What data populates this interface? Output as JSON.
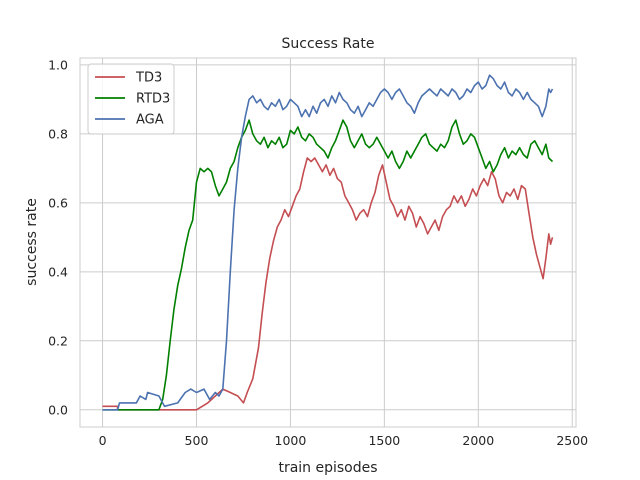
{
  "chart_data": {
    "type": "line",
    "title": "Success Rate",
    "xlabel": "train episodes",
    "ylabel": "success rate",
    "xlim": [
      -120,
      2520
    ],
    "ylim": [
      -0.05,
      1.02
    ],
    "xticks": [
      0,
      500,
      1000,
      1500,
      2000,
      2500
    ],
    "xtick_labels": [
      "0",
      "500",
      "1000",
      "1500",
      "2000",
      "2500"
    ],
    "yticks": [
      0.0,
      0.2,
      0.4,
      0.6,
      0.8,
      1.0
    ],
    "ytick_labels": [
      "0.0",
      "0.2",
      "0.4",
      "0.6",
      "0.8",
      "1.0"
    ],
    "grid": true,
    "legend_position": "top-left",
    "series": [
      {
        "name": "TD3",
        "color": "#c44e52",
        "points": [
          [
            0,
            0.01
          ],
          [
            80,
            0.01
          ],
          [
            80,
            0.0
          ],
          [
            300,
            0.0
          ],
          [
            500,
            0.0
          ],
          [
            560,
            0.02
          ],
          [
            600,
            0.04
          ],
          [
            640,
            0.06
          ],
          [
            680,
            0.05
          ],
          [
            720,
            0.04
          ],
          [
            750,
            0.02
          ],
          [
            770,
            0.05
          ],
          [
            800,
            0.09
          ],
          [
            830,
            0.18
          ],
          [
            850,
            0.28
          ],
          [
            870,
            0.37
          ],
          [
            890,
            0.44
          ],
          [
            910,
            0.49
          ],
          [
            930,
            0.53
          ],
          [
            950,
            0.55
          ],
          [
            970,
            0.58
          ],
          [
            990,
            0.56
          ],
          [
            1010,
            0.59
          ],
          [
            1030,
            0.62
          ],
          [
            1050,
            0.64
          ],
          [
            1070,
            0.69
          ],
          [
            1090,
            0.73
          ],
          [
            1110,
            0.72
          ],
          [
            1130,
            0.73
          ],
          [
            1150,
            0.71
          ],
          [
            1170,
            0.69
          ],
          [
            1190,
            0.71
          ],
          [
            1210,
            0.68
          ],
          [
            1230,
            0.7
          ],
          [
            1250,
            0.67
          ],
          [
            1270,
            0.66
          ],
          [
            1290,
            0.62
          ],
          [
            1310,
            0.6
          ],
          [
            1330,
            0.58
          ],
          [
            1350,
            0.55
          ],
          [
            1370,
            0.57
          ],
          [
            1390,
            0.58
          ],
          [
            1410,
            0.56
          ],
          [
            1430,
            0.6
          ],
          [
            1450,
            0.63
          ],
          [
            1470,
            0.68
          ],
          [
            1490,
            0.71
          ],
          [
            1510,
            0.66
          ],
          [
            1530,
            0.61
          ],
          [
            1550,
            0.59
          ],
          [
            1570,
            0.56
          ],
          [
            1590,
            0.58
          ],
          [
            1610,
            0.55
          ],
          [
            1630,
            0.59
          ],
          [
            1650,
            0.57
          ],
          [
            1670,
            0.53
          ],
          [
            1690,
            0.56
          ],
          [
            1710,
            0.54
          ],
          [
            1730,
            0.51
          ],
          [
            1750,
            0.53
          ],
          [
            1770,
            0.55
          ],
          [
            1790,
            0.52
          ],
          [
            1810,
            0.56
          ],
          [
            1830,
            0.58
          ],
          [
            1850,
            0.59
          ],
          [
            1870,
            0.62
          ],
          [
            1890,
            0.6
          ],
          [
            1910,
            0.62
          ],
          [
            1930,
            0.59
          ],
          [
            1950,
            0.61
          ],
          [
            1970,
            0.64
          ],
          [
            1990,
            0.62
          ],
          [
            2010,
            0.65
          ],
          [
            2030,
            0.67
          ],
          [
            2050,
            0.65
          ],
          [
            2070,
            0.69
          ],
          [
            2090,
            0.67
          ],
          [
            2110,
            0.62
          ],
          [
            2130,
            0.6
          ],
          [
            2150,
            0.63
          ],
          [
            2170,
            0.62
          ],
          [
            2190,
            0.64
          ],
          [
            2210,
            0.61
          ],
          [
            2230,
            0.65
          ],
          [
            2250,
            0.64
          ],
          [
            2270,
            0.57
          ],
          [
            2290,
            0.5
          ],
          [
            2310,
            0.45
          ],
          [
            2330,
            0.41
          ],
          [
            2345,
            0.38
          ],
          [
            2360,
            0.44
          ],
          [
            2375,
            0.51
          ],
          [
            2385,
            0.48
          ],
          [
            2395,
            0.5
          ]
        ]
      },
      {
        "name": "RTD3",
        "color": "#008000",
        "points": [
          [
            0,
            0.0
          ],
          [
            300,
            0.0
          ],
          [
            320,
            0.03
          ],
          [
            340,
            0.1
          ],
          [
            360,
            0.2
          ],
          [
            380,
            0.29
          ],
          [
            400,
            0.36
          ],
          [
            420,
            0.41
          ],
          [
            440,
            0.47
          ],
          [
            460,
            0.52
          ],
          [
            480,
            0.55
          ],
          [
            500,
            0.66
          ],
          [
            520,
            0.7
          ],
          [
            540,
            0.69
          ],
          [
            560,
            0.7
          ],
          [
            580,
            0.69
          ],
          [
            600,
            0.65
          ],
          [
            620,
            0.62
          ],
          [
            640,
            0.64
          ],
          [
            660,
            0.66
          ],
          [
            680,
            0.7
          ],
          [
            700,
            0.72
          ],
          [
            720,
            0.76
          ],
          [
            740,
            0.79
          ],
          [
            760,
            0.81
          ],
          [
            780,
            0.84
          ],
          [
            800,
            0.8
          ],
          [
            820,
            0.78
          ],
          [
            840,
            0.77
          ],
          [
            860,
            0.79
          ],
          [
            880,
            0.76
          ],
          [
            900,
            0.78
          ],
          [
            920,
            0.77
          ],
          [
            940,
            0.79
          ],
          [
            960,
            0.76
          ],
          [
            980,
            0.77
          ],
          [
            1000,
            0.81
          ],
          [
            1020,
            0.8
          ],
          [
            1040,
            0.82
          ],
          [
            1060,
            0.79
          ],
          [
            1080,
            0.78
          ],
          [
            1100,
            0.8
          ],
          [
            1120,
            0.79
          ],
          [
            1140,
            0.77
          ],
          [
            1160,
            0.76
          ],
          [
            1180,
            0.75
          ],
          [
            1200,
            0.73
          ],
          [
            1220,
            0.76
          ],
          [
            1240,
            0.78
          ],
          [
            1260,
            0.81
          ],
          [
            1280,
            0.84
          ],
          [
            1300,
            0.82
          ],
          [
            1320,
            0.78
          ],
          [
            1340,
            0.76
          ],
          [
            1360,
            0.78
          ],
          [
            1380,
            0.8
          ],
          [
            1400,
            0.77
          ],
          [
            1420,
            0.76
          ],
          [
            1440,
            0.77
          ],
          [
            1460,
            0.79
          ],
          [
            1480,
            0.77
          ],
          [
            1500,
            0.75
          ],
          [
            1520,
            0.73
          ],
          [
            1540,
            0.75
          ],
          [
            1560,
            0.72
          ],
          [
            1580,
            0.7
          ],
          [
            1600,
            0.72
          ],
          [
            1620,
            0.75
          ],
          [
            1640,
            0.73
          ],
          [
            1660,
            0.75
          ],
          [
            1680,
            0.77
          ],
          [
            1700,
            0.79
          ],
          [
            1720,
            0.8
          ],
          [
            1740,
            0.77
          ],
          [
            1760,
            0.76
          ],
          [
            1780,
            0.75
          ],
          [
            1800,
            0.77
          ],
          [
            1820,
            0.76
          ],
          [
            1840,
            0.78
          ],
          [
            1860,
            0.82
          ],
          [
            1880,
            0.84
          ],
          [
            1900,
            0.8
          ],
          [
            1920,
            0.77
          ],
          [
            1940,
            0.78
          ],
          [
            1960,
            0.8
          ],
          [
            1980,
            0.79
          ],
          [
            2000,
            0.76
          ],
          [
            2020,
            0.73
          ],
          [
            2040,
            0.7
          ],
          [
            2060,
            0.72
          ],
          [
            2080,
            0.69
          ],
          [
            2100,
            0.71
          ],
          [
            2120,
            0.74
          ],
          [
            2140,
            0.76
          ],
          [
            2160,
            0.73
          ],
          [
            2180,
            0.75
          ],
          [
            2200,
            0.74
          ],
          [
            2220,
            0.76
          ],
          [
            2240,
            0.74
          ],
          [
            2260,
            0.73
          ],
          [
            2280,
            0.77
          ],
          [
            2300,
            0.78
          ],
          [
            2320,
            0.76
          ],
          [
            2340,
            0.74
          ],
          [
            2360,
            0.77
          ],
          [
            2375,
            0.73
          ],
          [
            2395,
            0.72
          ]
        ]
      },
      {
        "name": "AGA",
        "color": "#4c72b0",
        "points": [
          [
            0,
            0.0
          ],
          [
            80,
            0.0
          ],
          [
            90,
            0.02
          ],
          [
            180,
            0.02
          ],
          [
            200,
            0.04
          ],
          [
            230,
            0.03
          ],
          [
            240,
            0.05
          ],
          [
            300,
            0.04
          ],
          [
            330,
            0.01
          ],
          [
            400,
            0.02
          ],
          [
            440,
            0.05
          ],
          [
            470,
            0.06
          ],
          [
            500,
            0.05
          ],
          [
            540,
            0.06
          ],
          [
            570,
            0.03
          ],
          [
            600,
            0.05
          ],
          [
            620,
            0.04
          ],
          [
            640,
            0.06
          ],
          [
            660,
            0.2
          ],
          [
            680,
            0.4
          ],
          [
            700,
            0.58
          ],
          [
            720,
            0.7
          ],
          [
            740,
            0.79
          ],
          [
            760,
            0.85
          ],
          [
            780,
            0.9
          ],
          [
            800,
            0.91
          ],
          [
            820,
            0.89
          ],
          [
            840,
            0.9
          ],
          [
            860,
            0.88
          ],
          [
            880,
            0.87
          ],
          [
            900,
            0.89
          ],
          [
            920,
            0.88
          ],
          [
            940,
            0.9
          ],
          [
            960,
            0.87
          ],
          [
            980,
            0.88
          ],
          [
            1000,
            0.9
          ],
          [
            1020,
            0.89
          ],
          [
            1040,
            0.88
          ],
          [
            1060,
            0.85
          ],
          [
            1080,
            0.87
          ],
          [
            1100,
            0.85
          ],
          [
            1120,
            0.88
          ],
          [
            1140,
            0.86
          ],
          [
            1160,
            0.89
          ],
          [
            1180,
            0.9
          ],
          [
            1200,
            0.88
          ],
          [
            1220,
            0.91
          ],
          [
            1240,
            0.89
          ],
          [
            1260,
            0.92
          ],
          [
            1280,
            0.9
          ],
          [
            1300,
            0.89
          ],
          [
            1320,
            0.87
          ],
          [
            1340,
            0.86
          ],
          [
            1360,
            0.88
          ],
          [
            1380,
            0.85
          ],
          [
            1400,
            0.87
          ],
          [
            1420,
            0.89
          ],
          [
            1440,
            0.88
          ],
          [
            1460,
            0.9
          ],
          [
            1480,
            0.92
          ],
          [
            1500,
            0.93
          ],
          [
            1520,
            0.92
          ],
          [
            1540,
            0.9
          ],
          [
            1560,
            0.92
          ],
          [
            1580,
            0.93
          ],
          [
            1600,
            0.91
          ],
          [
            1620,
            0.89
          ],
          [
            1640,
            0.88
          ],
          [
            1660,
            0.86
          ],
          [
            1680,
            0.89
          ],
          [
            1700,
            0.91
          ],
          [
            1720,
            0.92
          ],
          [
            1740,
            0.93
          ],
          [
            1760,
            0.92
          ],
          [
            1780,
            0.91
          ],
          [
            1800,
            0.93
          ],
          [
            1820,
            0.92
          ],
          [
            1840,
            0.91
          ],
          [
            1860,
            0.93
          ],
          [
            1880,
            0.92
          ],
          [
            1900,
            0.9
          ],
          [
            1920,
            0.91
          ],
          [
            1940,
            0.93
          ],
          [
            1960,
            0.92
          ],
          [
            1980,
            0.94
          ],
          [
            2000,
            0.95
          ],
          [
            2020,
            0.93
          ],
          [
            2040,
            0.94
          ],
          [
            2060,
            0.97
          ],
          [
            2080,
            0.96
          ],
          [
            2100,
            0.94
          ],
          [
            2120,
            0.93
          ],
          [
            2140,
            0.95
          ],
          [
            2160,
            0.92
          ],
          [
            2180,
            0.91
          ],
          [
            2200,
            0.93
          ],
          [
            2220,
            0.92
          ],
          [
            2240,
            0.9
          ],
          [
            2260,
            0.92
          ],
          [
            2280,
            0.9
          ],
          [
            2300,
            0.89
          ],
          [
            2320,
            0.88
          ],
          [
            2340,
            0.85
          ],
          [
            2360,
            0.88
          ],
          [
            2375,
            0.93
          ],
          [
            2385,
            0.92
          ],
          [
            2395,
            0.93
          ]
        ]
      }
    ]
  }
}
